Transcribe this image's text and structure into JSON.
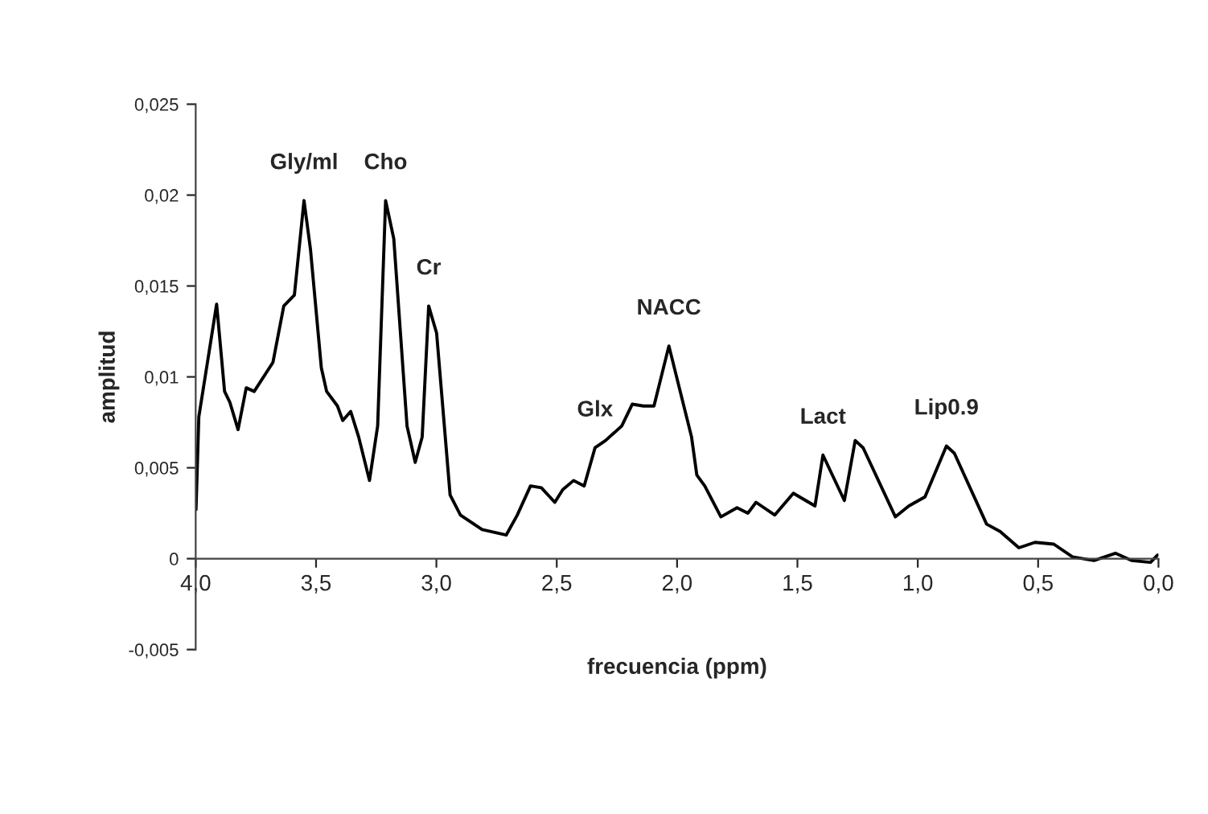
{
  "chart_data": {
    "type": "line",
    "xlabel": "frecuencia (ppm)",
    "ylabel": "amplitud",
    "x": [
      3.9987,
      3.987,
      3.913,
      3.88,
      3.858,
      3.824,
      3.79,
      3.757,
      3.679,
      3.634,
      3.59,
      3.55,
      3.523,
      3.478,
      3.456,
      3.411,
      3.389,
      3.356,
      3.323,
      3.278,
      3.244,
      3.211,
      3.177,
      3.122,
      3.088,
      3.059,
      3.032,
      2.999,
      2.943,
      2.9,
      2.81,
      2.71,
      2.664,
      2.609,
      2.564,
      2.508,
      2.475,
      2.43,
      2.386,
      2.341,
      2.297,
      2.23,
      2.186,
      2.14,
      2.096,
      2.034,
      1.94,
      1.918,
      1.885,
      1.818,
      1.751,
      1.706,
      1.672,
      1.594,
      1.517,
      1.427,
      1.394,
      1.305,
      1.26,
      1.227,
      1.093,
      1.037,
      0.97,
      0.881,
      0.848,
      0.714,
      0.658,
      0.58,
      0.513,
      0.435,
      0.357,
      0.268,
      0.179,
      0.112,
      0.033,
      0.004
    ],
    "series": [
      {
        "color": "#000000",
        "values": [
          0.0027,
          0.0078,
          0.014,
          0.0092,
          0.0086,
          0.0071,
          0.0094,
          0.0092,
          0.0108,
          0.0139,
          0.0145,
          0.0197,
          0.017,
          0.0105,
          0.0092,
          0.0084,
          0.0076,
          0.0081,
          0.0067,
          0.0043,
          0.0073,
          0.0197,
          0.0176,
          0.0073,
          0.0053,
          0.0067,
          0.0139,
          0.0124,
          0.0035,
          0.0024,
          0.0016,
          0.0013,
          0.0024,
          0.004,
          0.0039,
          0.0031,
          0.0038,
          0.0043,
          0.004,
          0.0061,
          0.0065,
          0.0073,
          0.0085,
          0.0084,
          0.0084,
          0.0117,
          0.0067,
          0.0046,
          0.004,
          0.0023,
          0.0028,
          0.0025,
          0.0031,
          0.0024,
          0.0036,
          0.0029,
          0.0057,
          0.0032,
          0.0065,
          0.0061,
          0.0023,
          0.0029,
          0.0034,
          0.0062,
          0.0058,
          0.0019,
          0.0015,
          0.0006,
          0.0009,
          0.0008,
          0.0001,
          -0.0001,
          0.0003,
          -0.0001,
          -0.0002,
          0.0002
        ]
      }
    ],
    "xlim": [
      4.0,
      0.0
    ],
    "xticks": [
      {
        "value": 4.0,
        "label": "4,0"
      },
      {
        "value": 3.5,
        "label": "3,5"
      },
      {
        "value": 3.0,
        "label": "3,0"
      },
      {
        "value": 2.5,
        "label": "2,5"
      },
      {
        "value": 2.0,
        "label": "2,0"
      },
      {
        "value": 1.5,
        "label": "1,5"
      },
      {
        "value": 1.0,
        "label": "1,0"
      },
      {
        "value": 0.5,
        "label": "0,5"
      },
      {
        "value": 0.0,
        "label": "0,0"
      }
    ],
    "ylim": [
      -0.005,
      0.025
    ],
    "yticks": [
      {
        "value": -0.005,
        "label": "-0,005"
      },
      0,
      {
        "value": 0.005,
        "label": "0,005"
      },
      {
        "value": 0.01,
        "label": "0,01"
      },
      {
        "value": 0.015,
        "label": "0,015"
      },
      {
        "value": 0.02,
        "label": "0,02"
      },
      {
        "value": 0.025,
        "label": "0,025"
      }
    ],
    "annotations": [
      {
        "text": "Gly/ml",
        "x": 3.55,
        "y": 0.0197
      },
      {
        "text": "Cho",
        "x": 3.211,
        "y": 0.0197
      },
      {
        "text": "Cr",
        "x": 3.032,
        "y": 0.0139
      },
      {
        "text": "Glx",
        "x": 2.341,
        "y": 0.0061
      },
      {
        "text": "NACC",
        "x": 2.034,
        "y": 0.0117
      },
      {
        "text": "Lact",
        "x": 1.394,
        "y": 0.0057
      },
      {
        "text": "Lip0.9",
        "x": 0.881,
        "y": 0.0062
      }
    ],
    "grid": false,
    "marker": "none",
    "line_style": "solid"
  }
}
